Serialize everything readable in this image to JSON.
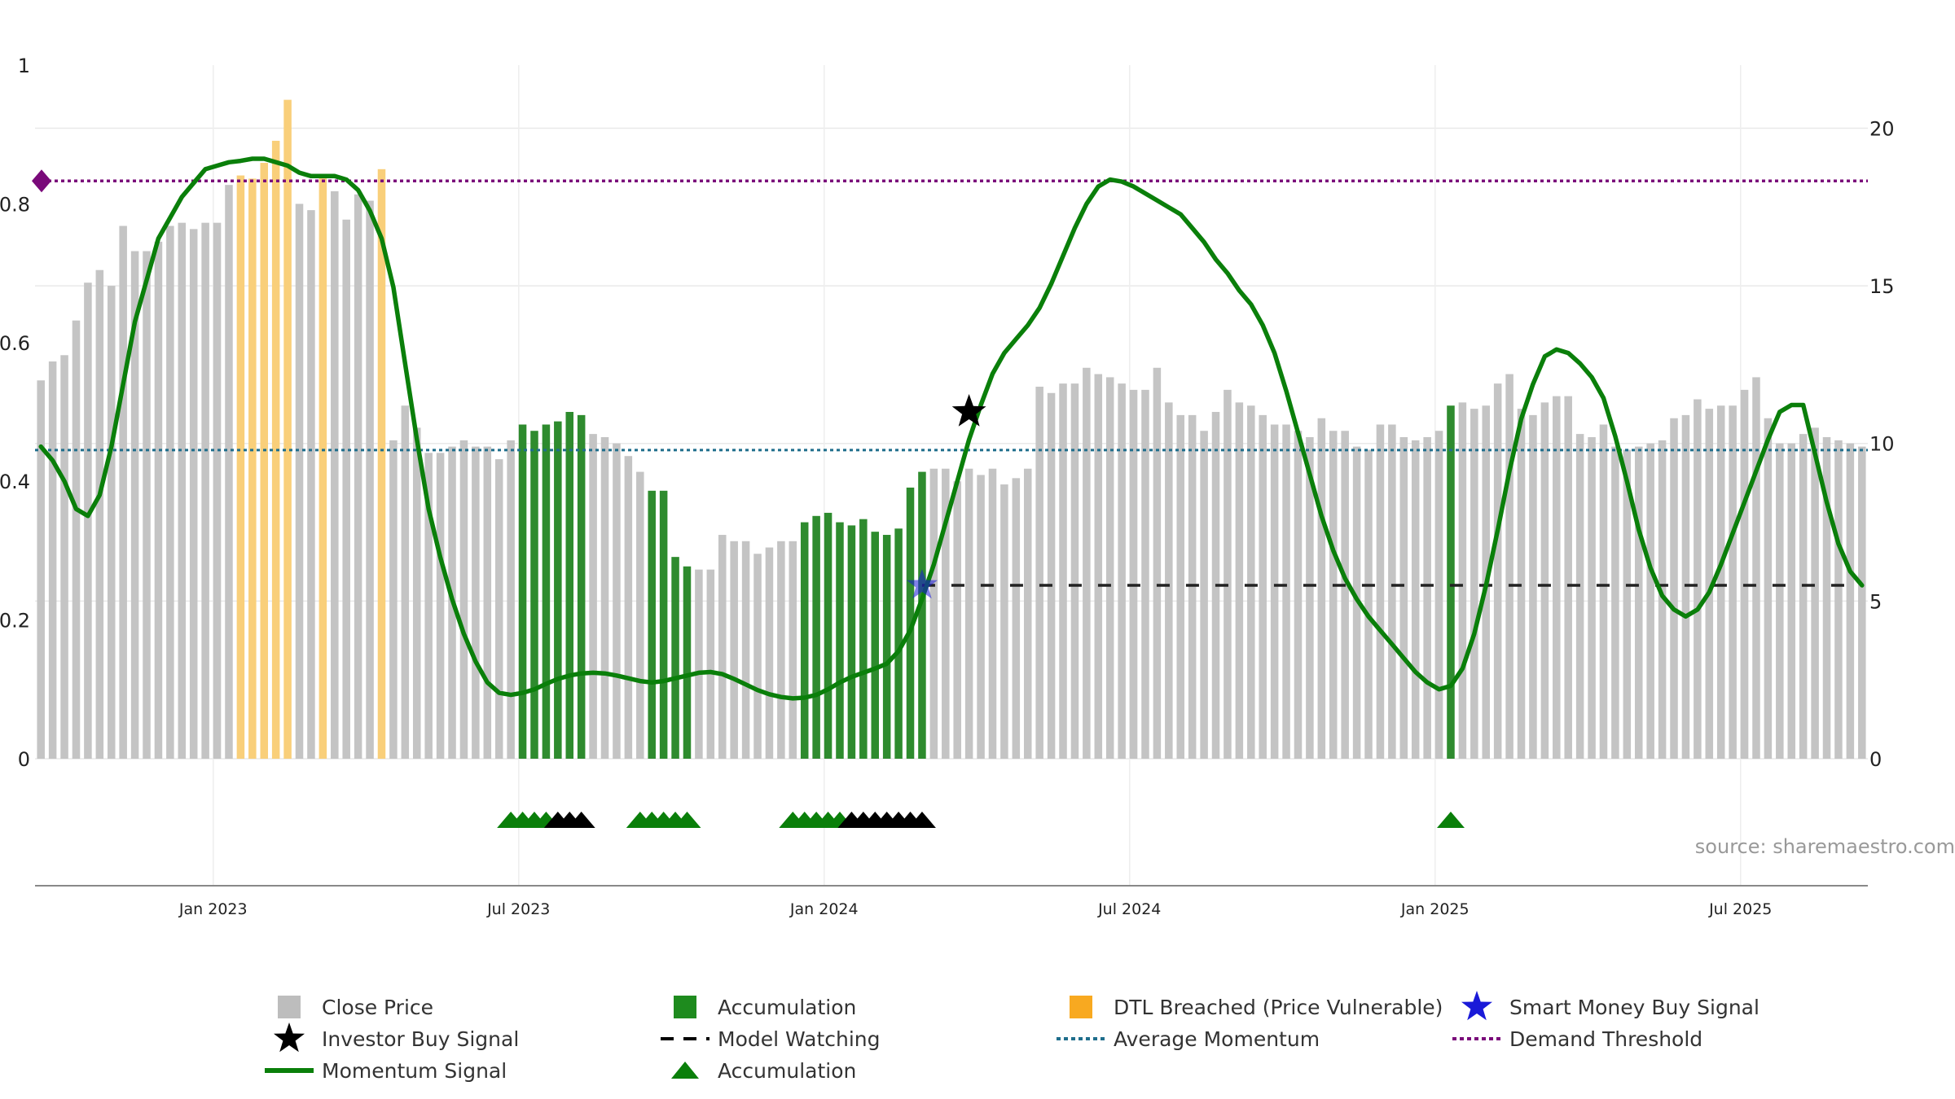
{
  "source_note": "source: sharemaestro.com",
  "colors": {
    "close_price": "#c4c4c4",
    "accumulation": "#2e8b2e",
    "dtl": "#f9cf7a",
    "momentum": "#0a7f0a",
    "avg_momentum": "#1f6e8c",
    "demand": "#7a0a7a",
    "watch": "#222222",
    "smart_money": "#1a1ad8"
  },
  "chart_data": {
    "type": "bar",
    "x_ticks": [
      "Jan 2023",
      "Jul 2023",
      "Jan 2024",
      "Jul 2024",
      "Jan 2025",
      "Jul 2025"
    ],
    "left_axis": {
      "ylim": [
        0,
        1
      ],
      "ticks": [
        "0",
        "0.2",
        "0.4",
        "0.6",
        "0.8",
        "1"
      ]
    },
    "right_axis": {
      "ylim": [
        0,
        22
      ],
      "ticks": [
        "0",
        "5",
        "10",
        "15",
        "20"
      ]
    },
    "x_range_months": [
      -3.5,
      32.5
    ],
    "close_price_weeks": [
      [
        0,
        12.0,
        "c"
      ],
      [
        1,
        12.6,
        "c"
      ],
      [
        2,
        12.8,
        "c"
      ],
      [
        3,
        13.9,
        "c"
      ],
      [
        4,
        15.1,
        "c"
      ],
      [
        5,
        15.5,
        "c"
      ],
      [
        6,
        15.0,
        "c"
      ],
      [
        7,
        16.9,
        "c"
      ],
      [
        8,
        16.1,
        "c"
      ],
      [
        9,
        16.1,
        "c"
      ],
      [
        10,
        16.4,
        "c"
      ],
      [
        11,
        16.9,
        "c"
      ],
      [
        12,
        17.0,
        "c"
      ],
      [
        13,
        16.8,
        "c"
      ],
      [
        14,
        17.0,
        "c"
      ],
      [
        15,
        17.0,
        "c"
      ],
      [
        16,
        18.2,
        "c"
      ],
      [
        17,
        18.5,
        "d"
      ],
      [
        18,
        18.4,
        "d"
      ],
      [
        19,
        18.9,
        "d"
      ],
      [
        20,
        19.6,
        "d"
      ],
      [
        21,
        20.9,
        "d"
      ],
      [
        22,
        17.6,
        "c"
      ],
      [
        23,
        17.4,
        "c"
      ],
      [
        24,
        18.5,
        "d"
      ],
      [
        25,
        18.0,
        "c"
      ],
      [
        26,
        17.1,
        "c"
      ],
      [
        27,
        17.9,
        "c"
      ],
      [
        28,
        17.7,
        "c"
      ],
      [
        29,
        18.7,
        "d"
      ],
      [
        30,
        10.1,
        "c"
      ],
      [
        31,
        11.2,
        "c"
      ],
      [
        32,
        10.5,
        "c"
      ],
      [
        33,
        9.7,
        "c"
      ],
      [
        34,
        9.7,
        "c"
      ],
      [
        35,
        9.9,
        "c"
      ],
      [
        36,
        10.1,
        "c"
      ],
      [
        37,
        9.9,
        "c"
      ],
      [
        38,
        9.9,
        "c"
      ],
      [
        39,
        9.5,
        "c"
      ],
      [
        40,
        10.1,
        "c"
      ],
      [
        41,
        10.6,
        "a"
      ],
      [
        42,
        10.4,
        "a"
      ],
      [
        43,
        10.6,
        "a"
      ],
      [
        44,
        10.7,
        "a"
      ],
      [
        45,
        11.0,
        "a"
      ],
      [
        46,
        10.9,
        "a"
      ],
      [
        47,
        10.3,
        "c"
      ],
      [
        48,
        10.2,
        "c"
      ],
      [
        49,
        10.0,
        "c"
      ],
      [
        50,
        9.6,
        "c"
      ],
      [
        51,
        9.1,
        "c"
      ],
      [
        52,
        8.5,
        "a"
      ],
      [
        53,
        8.5,
        "a"
      ],
      [
        54,
        6.4,
        "a"
      ],
      [
        55,
        6.1,
        "a"
      ],
      [
        56,
        6.0,
        "c"
      ],
      [
        57,
        6.0,
        "c"
      ],
      [
        58,
        7.1,
        "c"
      ],
      [
        59,
        6.9,
        "c"
      ],
      [
        60,
        6.9,
        "c"
      ],
      [
        61,
        6.5,
        "c"
      ],
      [
        62,
        6.7,
        "c"
      ],
      [
        63,
        6.9,
        "c"
      ],
      [
        64,
        6.9,
        "c"
      ],
      [
        65,
        7.5,
        "a"
      ],
      [
        66,
        7.7,
        "a"
      ],
      [
        67,
        7.8,
        "a"
      ],
      [
        68,
        7.5,
        "a"
      ],
      [
        69,
        7.4,
        "a"
      ],
      [
        70,
        7.6,
        "a"
      ],
      [
        71,
        7.2,
        "a"
      ],
      [
        72,
        7.1,
        "a"
      ],
      [
        73,
        7.3,
        "a"
      ],
      [
        74,
        8.6,
        "a"
      ],
      [
        75,
        9.1,
        "a"
      ],
      [
        76,
        9.2,
        "c"
      ],
      [
        77,
        9.2,
        "c"
      ],
      [
        78,
        8.8,
        "c"
      ],
      [
        79,
        9.2,
        "c"
      ],
      [
        80,
        9.0,
        "c"
      ],
      [
        81,
        9.2,
        "c"
      ],
      [
        82,
        8.7,
        "c"
      ],
      [
        83,
        8.9,
        "c"
      ],
      [
        84,
        9.2,
        "c"
      ],
      [
        85,
        11.8,
        "c"
      ],
      [
        86,
        11.6,
        "c"
      ],
      [
        87,
        11.9,
        "c"
      ],
      [
        88,
        11.9,
        "c"
      ],
      [
        89,
        12.4,
        "c"
      ],
      [
        90,
        12.2,
        "c"
      ],
      [
        91,
        12.1,
        "c"
      ],
      [
        92,
        11.9,
        "c"
      ],
      [
        93,
        11.7,
        "c"
      ],
      [
        94,
        11.7,
        "c"
      ],
      [
        95,
        12.4,
        "c"
      ],
      [
        96,
        11.3,
        "c"
      ],
      [
        97,
        10.9,
        "c"
      ],
      [
        98,
        10.9,
        "c"
      ],
      [
        99,
        10.4,
        "c"
      ],
      [
        100,
        11.0,
        "c"
      ],
      [
        101,
        11.7,
        "c"
      ],
      [
        102,
        11.3,
        "c"
      ],
      [
        103,
        11.2,
        "c"
      ],
      [
        104,
        10.9,
        "c"
      ],
      [
        105,
        10.6,
        "c"
      ],
      [
        106,
        10.6,
        "c"
      ],
      [
        107,
        10.4,
        "c"
      ],
      [
        108,
        10.2,
        "c"
      ],
      [
        109,
        10.8,
        "c"
      ],
      [
        110,
        10.4,
        "c"
      ],
      [
        111,
        10.4,
        "c"
      ],
      [
        112,
        9.9,
        "c"
      ],
      [
        113,
        9.8,
        "c"
      ],
      [
        114,
        10.6,
        "c"
      ],
      [
        115,
        10.6,
        "c"
      ],
      [
        116,
        10.2,
        "c"
      ],
      [
        117,
        10.1,
        "c"
      ],
      [
        118,
        10.2,
        "c"
      ],
      [
        119,
        10.4,
        "c"
      ],
      [
        120,
        11.2,
        "a"
      ],
      [
        121,
        11.3,
        "c"
      ],
      [
        122,
        11.1,
        "c"
      ],
      [
        123,
        11.2,
        "c"
      ],
      [
        124,
        11.9,
        "c"
      ],
      [
        125,
        12.2,
        "c"
      ],
      [
        126,
        11.1,
        "c"
      ],
      [
        127,
        10.9,
        "c"
      ],
      [
        128,
        11.3,
        "c"
      ],
      [
        129,
        11.5,
        "c"
      ],
      [
        130,
        11.5,
        "c"
      ],
      [
        131,
        10.3,
        "c"
      ],
      [
        132,
        10.2,
        "c"
      ],
      [
        133,
        10.6,
        "c"
      ],
      [
        134,
        9.9,
        "c"
      ],
      [
        135,
        9.8,
        "c"
      ],
      [
        136,
        9.9,
        "c"
      ],
      [
        137,
        10.0,
        "c"
      ],
      [
        138,
        10.1,
        "c"
      ],
      [
        139,
        10.8,
        "c"
      ],
      [
        140,
        10.9,
        "c"
      ],
      [
        141,
        11.4,
        "c"
      ],
      [
        142,
        11.1,
        "c"
      ],
      [
        143,
        11.2,
        "c"
      ],
      [
        144,
        11.2,
        "c"
      ],
      [
        145,
        11.7,
        "c"
      ],
      [
        146,
        12.1,
        "c"
      ],
      [
        147,
        10.8,
        "c"
      ],
      [
        148,
        10.0,
        "c"
      ],
      [
        149,
        10.0,
        "c"
      ],
      [
        150,
        10.3,
        "c"
      ],
      [
        151,
        10.5,
        "c"
      ],
      [
        152,
        10.2,
        "c"
      ],
      [
        153,
        10.1,
        "c"
      ],
      [
        154,
        10.0,
        "c"
      ],
      [
        155,
        9.9,
        "c"
      ]
    ],
    "momentum_signal": [
      [
        0,
        0.45
      ],
      [
        1,
        0.43
      ],
      [
        2,
        0.4
      ],
      [
        3,
        0.36
      ],
      [
        4,
        0.35
      ],
      [
        5,
        0.38
      ],
      [
        6,
        0.45
      ],
      [
        7,
        0.54
      ],
      [
        8,
        0.63
      ],
      [
        9,
        0.69
      ],
      [
        10,
        0.75
      ],
      [
        11,
        0.78
      ],
      [
        12,
        0.81
      ],
      [
        13,
        0.83
      ],
      [
        14,
        0.85
      ],
      [
        15,
        0.855
      ],
      [
        16,
        0.86
      ],
      [
        17,
        0.862
      ],
      [
        18,
        0.865
      ],
      [
        19,
        0.865
      ],
      [
        20,
        0.86
      ],
      [
        21,
        0.855
      ],
      [
        22,
        0.845
      ],
      [
        23,
        0.84
      ],
      [
        24,
        0.84
      ],
      [
        25,
        0.84
      ],
      [
        26,
        0.835
      ],
      [
        27,
        0.82
      ],
      [
        28,
        0.79
      ],
      [
        29,
        0.75
      ],
      [
        30,
        0.68
      ],
      [
        31,
        0.57
      ],
      [
        32,
        0.46
      ],
      [
        33,
        0.36
      ],
      [
        34,
        0.29
      ],
      [
        35,
        0.23
      ],
      [
        36,
        0.18
      ],
      [
        37,
        0.14
      ],
      [
        38,
        0.11
      ],
      [
        39,
        0.095
      ],
      [
        40,
        0.092
      ],
      [
        41,
        0.095
      ],
      [
        42,
        0.1
      ],
      [
        43,
        0.108
      ],
      [
        44,
        0.115
      ],
      [
        45,
        0.12
      ],
      [
        46,
        0.123
      ],
      [
        47,
        0.124
      ],
      [
        48,
        0.123
      ],
      [
        49,
        0.12
      ],
      [
        50,
        0.116
      ],
      [
        51,
        0.112
      ],
      [
        52,
        0.11
      ],
      [
        53,
        0.112
      ],
      [
        54,
        0.116
      ],
      [
        55,
        0.12
      ],
      [
        56,
        0.124
      ],
      [
        57,
        0.125
      ],
      [
        58,
        0.122
      ],
      [
        59,
        0.115
      ],
      [
        60,
        0.107
      ],
      [
        61,
        0.099
      ],
      [
        62,
        0.093
      ],
      [
        63,
        0.089
      ],
      [
        64,
        0.087
      ],
      [
        65,
        0.088
      ],
      [
        66,
        0.092
      ],
      [
        67,
        0.1
      ],
      [
        68,
        0.11
      ],
      [
        69,
        0.118
      ],
      [
        70,
        0.124
      ],
      [
        71,
        0.13
      ],
      [
        72,
        0.137
      ],
      [
        73,
        0.155
      ],
      [
        74,
        0.185
      ],
      [
        75,
        0.23
      ],
      [
        76,
        0.28
      ],
      [
        77,
        0.34
      ],
      [
        78,
        0.4
      ],
      [
        79,
        0.46
      ],
      [
        80,
        0.51
      ],
      [
        81,
        0.555
      ],
      [
        82,
        0.585
      ],
      [
        83,
        0.605
      ],
      [
        84,
        0.625
      ],
      [
        85,
        0.65
      ],
      [
        86,
        0.685
      ],
      [
        87,
        0.725
      ],
      [
        88,
        0.765
      ],
      [
        89,
        0.8
      ],
      [
        90,
        0.825
      ],
      [
        91,
        0.835
      ],
      [
        92,
        0.832
      ],
      [
        93,
        0.825
      ],
      [
        94,
        0.815
      ],
      [
        95,
        0.805
      ],
      [
        96,
        0.795
      ],
      [
        97,
        0.785
      ],
      [
        98,
        0.765
      ],
      [
        99,
        0.745
      ],
      [
        100,
        0.72
      ],
      [
        101,
        0.7
      ],
      [
        102,
        0.675
      ],
      [
        103,
        0.655
      ],
      [
        104,
        0.625
      ],
      [
        105,
        0.585
      ],
      [
        106,
        0.53
      ],
      [
        107,
        0.47
      ],
      [
        108,
        0.41
      ],
      [
        109,
        0.35
      ],
      [
        110,
        0.3
      ],
      [
        111,
        0.26
      ],
      [
        112,
        0.23
      ],
      [
        113,
        0.205
      ],
      [
        114,
        0.185
      ],
      [
        115,
        0.165
      ],
      [
        116,
        0.145
      ],
      [
        117,
        0.125
      ],
      [
        118,
        0.11
      ],
      [
        119,
        0.1
      ],
      [
        120,
        0.105
      ],
      [
        121,
        0.13
      ],
      [
        122,
        0.18
      ],
      [
        123,
        0.25
      ],
      [
        124,
        0.33
      ],
      [
        125,
        0.415
      ],
      [
        126,
        0.49
      ],
      [
        127,
        0.54
      ],
      [
        128,
        0.58
      ],
      [
        129,
        0.59
      ],
      [
        130,
        0.585
      ],
      [
        131,
        0.57
      ],
      [
        132,
        0.55
      ],
      [
        133,
        0.52
      ],
      [
        134,
        0.465
      ],
      [
        135,
        0.4
      ],
      [
        136,
        0.33
      ],
      [
        137,
        0.275
      ],
      [
        138,
        0.235
      ],
      [
        139,
        0.215
      ],
      [
        140,
        0.205
      ],
      [
        141,
        0.215
      ],
      [
        142,
        0.24
      ],
      [
        143,
        0.28
      ],
      [
        144,
        0.325
      ],
      [
        145,
        0.37
      ],
      [
        146,
        0.415
      ],
      [
        147,
        0.46
      ],
      [
        148,
        0.5
      ],
      [
        149,
        0.51
      ],
      [
        150,
        0.51
      ],
      [
        151,
        0.44
      ],
      [
        152,
        0.37
      ],
      [
        153,
        0.31
      ],
      [
        154,
        0.27
      ],
      [
        155,
        0.25
      ]
    ],
    "average_momentum": 0.445,
    "demand_threshold": 0.833,
    "model_watching": {
      "from_week": 75,
      "to_week": 155,
      "value": 5.5
    },
    "investor_buy_signal": {
      "week": 79,
      "value": 11.0
    },
    "smart_money_buy_signal": {
      "week": 75,
      "value": 5.5
    },
    "accumulation_triangles": [
      [
        40,
        "g"
      ],
      [
        41,
        "g"
      ],
      [
        42,
        "g"
      ],
      [
        43,
        "g"
      ],
      [
        44,
        "k"
      ],
      [
        45,
        "k"
      ],
      [
        46,
        "k"
      ],
      [
        51,
        "g"
      ],
      [
        52,
        "g"
      ],
      [
        53,
        "g"
      ],
      [
        54,
        "g"
      ],
      [
        55,
        "g"
      ],
      [
        64,
        "g"
      ],
      [
        65,
        "g"
      ],
      [
        66,
        "g"
      ],
      [
        67,
        "g"
      ],
      [
        68,
        "g"
      ],
      [
        69,
        "k"
      ],
      [
        70,
        "k"
      ],
      [
        71,
        "k"
      ],
      [
        72,
        "k"
      ],
      [
        73,
        "k"
      ],
      [
        74,
        "k"
      ],
      [
        75,
        "k"
      ],
      [
        120,
        "g"
      ]
    ],
    "legend": [
      {
        "label": "Close Price",
        "marker": "square",
        "color": "#bdbdbd"
      },
      {
        "label": "Accumulation",
        "marker": "square",
        "color": "#1e8b1e"
      },
      {
        "label": "DTL Breached (Price Vulnerable)",
        "marker": "square",
        "color": "#f8a920"
      },
      {
        "label": "Smart Money Buy Signal",
        "marker": "star",
        "color": "#1a1ad8"
      },
      {
        "label": "Investor Buy Signal",
        "marker": "star",
        "color": "#000000"
      },
      {
        "label": "Model Watching",
        "marker": "dash",
        "color": "#000000"
      },
      {
        "label": "Average Momentum",
        "marker": "dotted",
        "color": "#1f6e8c"
      },
      {
        "label": "Demand Threshold",
        "marker": "dotted",
        "color": "#7a0a7a"
      },
      {
        "label": "Momentum Signal",
        "marker": "line",
        "color": "#0a7f0a"
      },
      {
        "label": "Accumulation",
        "marker": "triangle",
        "color": "#0a7f0a"
      }
    ]
  }
}
